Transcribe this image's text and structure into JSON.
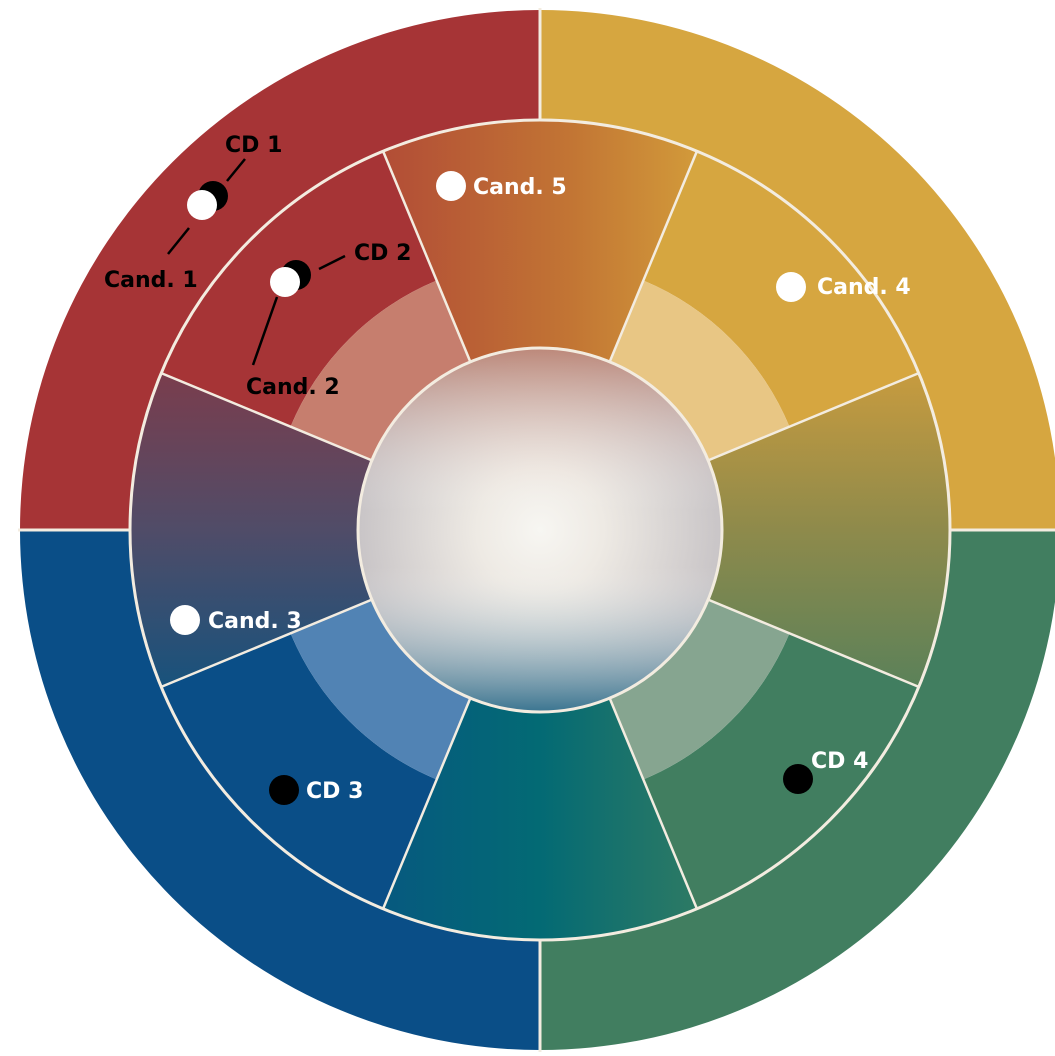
{
  "colors": {
    "red": "#a63436",
    "gold": "#d6a640",
    "green": "#417e60",
    "blue": "#0a4e87",
    "copper": "#bf6f33",
    "olive": "#7e8a50",
    "teal": "#046a74",
    "plum": "#5d4657",
    "separator": "#f3ece0"
  },
  "markers": {
    "candidates": [
      {
        "label": "Cand. 1"
      },
      {
        "label": "Cand. 2"
      },
      {
        "label": "Cand. 3"
      },
      {
        "label": "Cand. 4"
      },
      {
        "label": "Cand. 5"
      }
    ],
    "cds": [
      {
        "label": "CD 1"
      },
      {
        "label": "CD 2"
      },
      {
        "label": "CD 3"
      },
      {
        "label": "CD 4"
      }
    ]
  }
}
